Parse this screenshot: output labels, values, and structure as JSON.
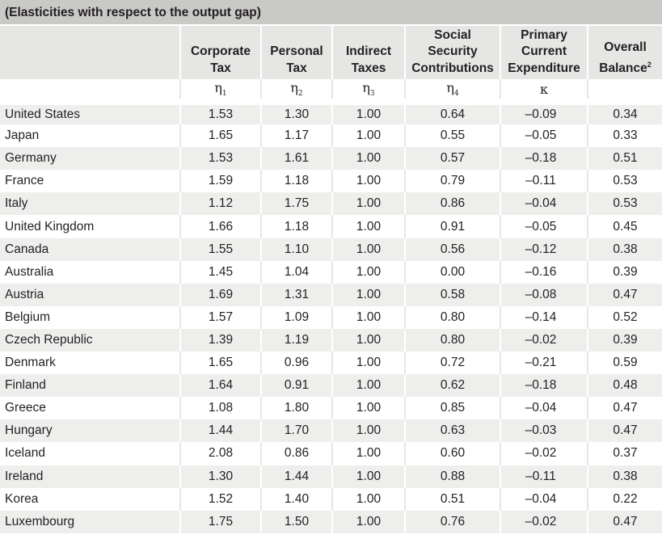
{
  "caption": "(Elasticities with respect to the output gap)",
  "header": {
    "col1": [
      "Corporate",
      "Tax"
    ],
    "col2": [
      "Personal",
      "Tax"
    ],
    "col3": [
      "Indirect",
      "Taxes"
    ],
    "col4": [
      "Social",
      "Security",
      "Contributions"
    ],
    "col5": [
      "Primary",
      "Current",
      "Expenditure"
    ],
    "col6": [
      "Overall",
      "Balance"
    ],
    "col6_note": "2"
  },
  "symbols": {
    "s1": "η",
    "s1_sub": "1",
    "s2": "η",
    "s2_sub": "2",
    "s3": "η",
    "s3_sub": "3",
    "s4": "η",
    "s4_sub": "4",
    "s5": "κ"
  },
  "rows": [
    {
      "country": "United States",
      "v": [
        "1.53",
        "1.30",
        "1.00",
        "0.64",
        "–0.09",
        "0.34"
      ]
    },
    {
      "country": "Japan",
      "v": [
        "1.65",
        "1.17",
        "1.00",
        "0.55",
        "–0.05",
        "0.33"
      ]
    },
    {
      "country": "Germany",
      "v": [
        "1.53",
        "1.61",
        "1.00",
        "0.57",
        "–0.18",
        "0.51"
      ]
    },
    {
      "country": "France",
      "v": [
        "1.59",
        "1.18",
        "1.00",
        "0.79",
        "–0.11",
        "0.53"
      ]
    },
    {
      "country": "Italy",
      "v": [
        "1.12",
        "1.75",
        "1.00",
        "0.86",
        "–0.04",
        "0.53"
      ]
    },
    {
      "country": "United Kingdom",
      "v": [
        "1.66",
        "1.18",
        "1.00",
        "0.91",
        "–0.05",
        "0.45"
      ]
    },
    {
      "country": "Canada",
      "v": [
        "1.55",
        "1.10",
        "1.00",
        "0.56",
        "–0.12",
        "0.38"
      ]
    },
    {
      "country": "Australia",
      "v": [
        "1.45",
        "1.04",
        "1.00",
        "0.00",
        "–0.16",
        "0.39"
      ]
    },
    {
      "country": "Austria",
      "v": [
        "1.69",
        "1.31",
        "1.00",
        "0.58",
        "–0.08",
        "0.47"
      ]
    },
    {
      "country": "Belgium",
      "v": [
        "1.57",
        "1.09",
        "1.00",
        "0.80",
        "–0.14",
        "0.52"
      ]
    },
    {
      "country": "Czech Republic",
      "v": [
        "1.39",
        "1.19",
        "1.00",
        "0.80",
        "–0.02",
        "0.39"
      ]
    },
    {
      "country": "Denmark",
      "v": [
        "1.65",
        "0.96",
        "1.00",
        "0.72",
        "–0.21",
        "0.59"
      ]
    },
    {
      "country": "Finland",
      "v": [
        "1.64",
        "0.91",
        "1.00",
        "0.62",
        "–0.18",
        "0.48"
      ]
    },
    {
      "country": "Greece",
      "v": [
        "1.08",
        "1.80",
        "1.00",
        "0.85",
        "–0.04",
        "0.47"
      ]
    },
    {
      "country": "Hungary",
      "v": [
        "1.44",
        "1.70",
        "1.00",
        "0.63",
        "–0.03",
        "0.47"
      ]
    },
    {
      "country": "Iceland",
      "v": [
        "2.08",
        "0.86",
        "1.00",
        "0.60",
        "–0.02",
        "0.37"
      ]
    },
    {
      "country": "Ireland",
      "v": [
        "1.30",
        "1.44",
        "1.00",
        "0.88",
        "–0.11",
        "0.38"
      ]
    },
    {
      "country": "Korea",
      "v": [
        "1.52",
        "1.40",
        "1.00",
        "0.51",
        "–0.04",
        "0.22"
      ]
    },
    {
      "country": "Luxembourg",
      "v": [
        "1.75",
        "1.50",
        "1.00",
        "0.76",
        "–0.02",
        "0.47"
      ]
    }
  ]
}
